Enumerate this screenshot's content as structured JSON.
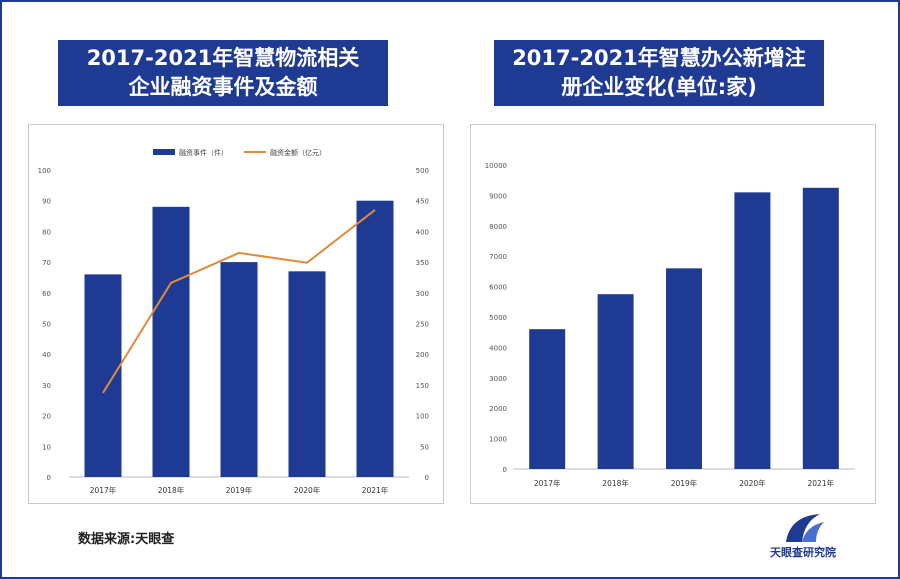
{
  "colors": {
    "bar": "#1f3a93",
    "line": "#e08a3c",
    "title_bg": "#1f3a93",
    "axis_text": "#555555"
  },
  "left_title": {
    "line1": "2017-2021年智慧物流相关",
    "line2": "企业融资事件及金额"
  },
  "right_title": {
    "line1": "2017-2021年智慧办公新增注",
    "line2": "册企业变化(单位:家)"
  },
  "source": "数据来源:天眼查",
  "logo": {
    "icon": "tianyancha-logo-icon",
    "text": "天眼查研究院"
  },
  "chart_data": [
    {
      "type": "bar",
      "categories": [
        "2017年",
        "2018年",
        "2019年",
        "2020年",
        "2021年"
      ],
      "series": [
        {
          "name": "融资事件（件）",
          "type": "bar",
          "axis": "left",
          "values": [
            66,
            88,
            70,
            67,
            90
          ]
        },
        {
          "name": "融资金额（亿元）",
          "type": "line",
          "axis": "right",
          "values": [
            137,
            316,
            365,
            349,
            435
          ]
        }
      ],
      "ylim": [
        0,
        100
      ],
      "y_ticks": [
        0,
        10,
        20,
        30,
        40,
        50,
        60,
        70,
        80,
        90,
        100
      ],
      "y2lim": [
        0,
        500
      ],
      "y2_ticks": [
        0,
        50,
        100,
        150,
        200,
        250,
        300,
        350,
        400,
        450,
        500
      ],
      "legend": "top-center",
      "grid": false
    },
    {
      "type": "bar",
      "categories": [
        "2017年",
        "2018年",
        "2019年",
        "2020年",
        "2021年"
      ],
      "values": [
        4600,
        5750,
        6600,
        9100,
        9250
      ],
      "ylim": [
        0,
        10000
      ],
      "y_ticks": [
        0,
        1000,
        2000,
        3000,
        4000,
        5000,
        6000,
        7000,
        8000,
        9000,
        10000
      ],
      "grid": false
    }
  ]
}
